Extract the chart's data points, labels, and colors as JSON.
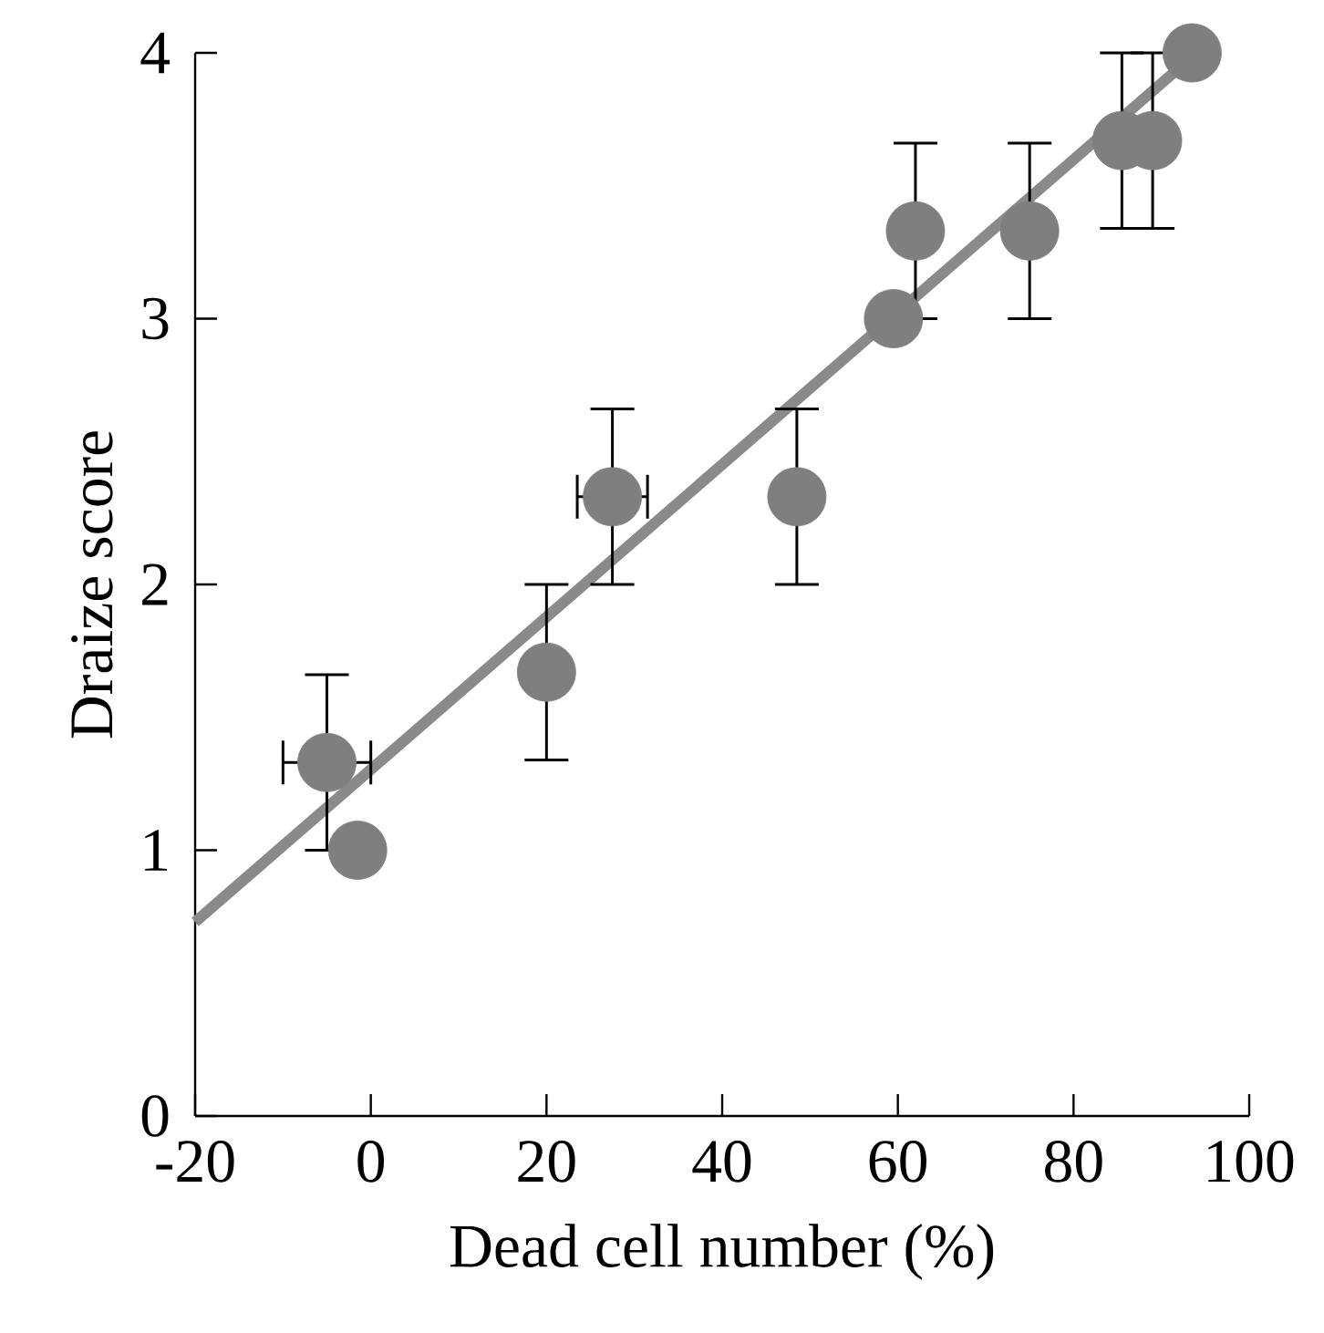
{
  "chart_data": {
    "type": "scatter",
    "xlabel": "Dead cell number (%)",
    "ylabel": "Draize score",
    "xlim": [
      -20,
      100
    ],
    "xticks": [
      -20,
      0,
      20,
      40,
      60,
      80,
      100
    ],
    "ylim": [
      0,
      4
    ],
    "yticks": [
      0,
      1,
      2,
      3,
      4
    ],
    "grid": false,
    "series": [
      {
        "marker": "circle",
        "color": "#7f7f7f",
        "x": [
          -5,
          -1.5,
          20,
          27.5,
          48.5,
          59.5,
          62,
          75,
          85.5,
          89,
          93.5
        ],
        "values": [
          1.33,
          1.0,
          1.67,
          2.33,
          2.33,
          3.0,
          3.33,
          3.33,
          3.67,
          3.67,
          4.0
        ],
        "errors": [
          0.33,
          null,
          0.33,
          0.33,
          0.33,
          null,
          0.33,
          0.33,
          0.33,
          0.33,
          null
        ],
        "xerrors": [
          5,
          null,
          null,
          4,
          null,
          null,
          null,
          null,
          null,
          null,
          null
        ]
      },
      {
        "type": "line",
        "marker": "none",
        "line_style": "solid",
        "color": "#8a8a8a",
        "x": [
          -20,
          94
        ],
        "values": [
          0.73,
          4.0
        ]
      }
    ]
  }
}
